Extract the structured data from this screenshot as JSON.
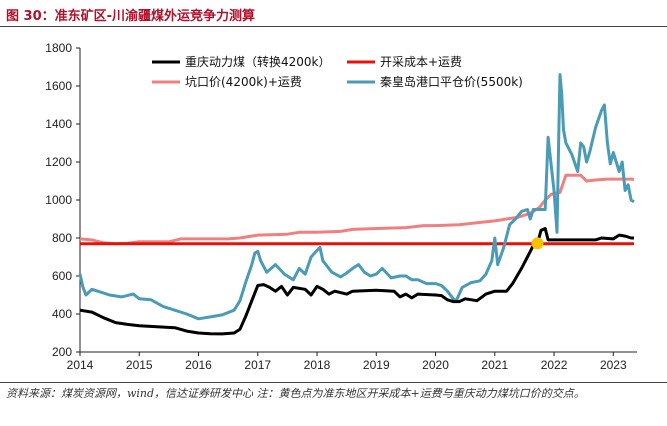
{
  "header": {
    "title": "图 30：准东矿区-川渝疆煤外运竞争力测算"
  },
  "footer": {
    "note": "资料来源：煤炭资源网，wind，信达证券研发中心   注：黄色点为准东地区开采成本+运费与重庆动力煤坑口价的交点。"
  },
  "colors": {
    "chongqing": "#000000",
    "cost": "#e3120b",
    "pit": "#f08080",
    "qhd": "#4a9bb5",
    "marker": "#ffc000"
  },
  "chart_data": {
    "type": "line",
    "xlim": [
      2014,
      2023.4
    ],
    "ylim": [
      200,
      1800
    ],
    "xticks": [
      "2014",
      "2015",
      "2016",
      "2017",
      "2018",
      "2019",
      "2020",
      "2021",
      "2022",
      "2023"
    ],
    "yticks": [
      "200",
      "400",
      "600",
      "800",
      "1000",
      "1200",
      "1400",
      "1600",
      "1800"
    ],
    "legend": {
      "position": "top"
    },
    "series": [
      {
        "name": "重庆动力煤（转换4200k）",
        "color": "#000000",
        "points": [
          [
            2014,
            420
          ],
          [
            2014.2,
            410
          ],
          [
            2014.4,
            380
          ],
          [
            2014.6,
            355
          ],
          [
            2014.8,
            345
          ],
          [
            2015,
            338
          ],
          [
            2015.3,
            333
          ],
          [
            2015.6,
            328
          ],
          [
            2015.8,
            310
          ],
          [
            2016,
            300
          ],
          [
            2016.2,
            296
          ],
          [
            2016.4,
            295
          ],
          [
            2016.6,
            300
          ],
          [
            2016.7,
            320
          ],
          [
            2016.8,
            390
          ],
          [
            2016.9,
            470
          ],
          [
            2017,
            550
          ],
          [
            2017.1,
            555
          ],
          [
            2017.2,
            540
          ],
          [
            2017.3,
            520
          ],
          [
            2017.4,
            545
          ],
          [
            2017.5,
            500
          ],
          [
            2017.6,
            540
          ],
          [
            2017.8,
            530
          ],
          [
            2017.9,
            500
          ],
          [
            2018,
            545
          ],
          [
            2018.1,
            530
          ],
          [
            2018.2,
            505
          ],
          [
            2018.3,
            520
          ],
          [
            2018.5,
            505
          ],
          [
            2018.6,
            520
          ],
          [
            2019,
            525
          ],
          [
            2019.3,
            520
          ],
          [
            2019.4,
            490
          ],
          [
            2019.5,
            505
          ],
          [
            2019.6,
            485
          ],
          [
            2019.7,
            505
          ],
          [
            2020,
            500
          ],
          [
            2020.1,
            497
          ],
          [
            2020.2,
            475
          ],
          [
            2020.3,
            465
          ],
          [
            2020.4,
            465
          ],
          [
            2020.5,
            480
          ],
          [
            2020.7,
            470
          ],
          [
            2020.85,
            505
          ],
          [
            2021,
            520
          ],
          [
            2021.2,
            520
          ],
          [
            2021.3,
            560
          ],
          [
            2021.45,
            640
          ],
          [
            2021.55,
            700
          ],
          [
            2021.65,
            760
          ],
          [
            2021.72,
            772
          ],
          [
            2021.78,
            840
          ],
          [
            2021.85,
            850
          ],
          [
            2021.9,
            790
          ],
          [
            2022,
            790
          ],
          [
            2022.3,
            790
          ],
          [
            2022.7,
            790
          ],
          [
            2022.8,
            800
          ],
          [
            2023,
            795
          ],
          [
            2023.1,
            815
          ],
          [
            2023.2,
            810
          ],
          [
            2023.3,
            800
          ],
          [
            2023.35,
            800
          ]
        ]
      },
      {
        "name": "开采成本+运费",
        "color": "#e3120b",
        "points": [
          [
            2014,
            770
          ],
          [
            2023.35,
            770
          ]
        ]
      },
      {
        "name": "坑口价(4200k)+运费",
        "color": "#f08080",
        "points": [
          [
            2014,
            795
          ],
          [
            2014.2,
            790
          ],
          [
            2014.4,
            775
          ],
          [
            2014.6,
            770
          ],
          [
            2014.8,
            772
          ],
          [
            2015,
            780
          ],
          [
            2015.5,
            780
          ],
          [
            2015.7,
            795
          ],
          [
            2016,
            795
          ],
          [
            2016.5,
            795
          ],
          [
            2016.7,
            800
          ],
          [
            2017,
            815
          ],
          [
            2017.5,
            820
          ],
          [
            2017.7,
            830
          ],
          [
            2018,
            830
          ],
          [
            2018.4,
            835
          ],
          [
            2018.6,
            845
          ],
          [
            2019,
            850
          ],
          [
            2019.5,
            855
          ],
          [
            2019.8,
            865
          ],
          [
            2020,
            865
          ],
          [
            2020.4,
            870
          ],
          [
            2020.7,
            880
          ],
          [
            2021,
            890
          ],
          [
            2021.2,
            900
          ],
          [
            2021.4,
            910
          ],
          [
            2021.6,
            930
          ],
          [
            2021.75,
            960
          ],
          [
            2021.85,
            1000
          ],
          [
            2021.95,
            1030
          ],
          [
            2022.1,
            1040
          ],
          [
            2022.2,
            1130
          ],
          [
            2022.45,
            1130
          ],
          [
            2022.55,
            1100
          ],
          [
            2022.7,
            1105
          ],
          [
            2022.9,
            1110
          ],
          [
            2023.1,
            1110
          ],
          [
            2023.3,
            1110
          ],
          [
            2023.35,
            1108
          ]
        ]
      },
      {
        "name": "秦皇岛港口平仓价(5500k)",
        "color": "#4a9bb5",
        "points": [
          [
            2014,
            610
          ],
          [
            2014.05,
            540
          ],
          [
            2014.1,
            500
          ],
          [
            2014.2,
            530
          ],
          [
            2014.3,
            520
          ],
          [
            2014.5,
            500
          ],
          [
            2014.7,
            490
          ],
          [
            2014.9,
            505
          ],
          [
            2015,
            480
          ],
          [
            2015.2,
            475
          ],
          [
            2015.4,
            440
          ],
          [
            2015.6,
            420
          ],
          [
            2015.8,
            400
          ],
          [
            2016,
            375
          ],
          [
            2016.2,
            385
          ],
          [
            2016.4,
            395
          ],
          [
            2016.6,
            420
          ],
          [
            2016.7,
            470
          ],
          [
            2016.8,
            570
          ],
          [
            2016.9,
            660
          ],
          [
            2016.95,
            720
          ],
          [
            2017,
            730
          ],
          [
            2017.05,
            680
          ],
          [
            2017.15,
            620
          ],
          [
            2017.3,
            660
          ],
          [
            2017.45,
            610
          ],
          [
            2017.6,
            580
          ],
          [
            2017.7,
            640
          ],
          [
            2017.8,
            610
          ],
          [
            2017.9,
            700
          ],
          [
            2018,
            735
          ],
          [
            2018.05,
            750
          ],
          [
            2018.1,
            680
          ],
          [
            2018.25,
            620
          ],
          [
            2018.4,
            595
          ],
          [
            2018.5,
            615
          ],
          [
            2018.6,
            640
          ],
          [
            2018.7,
            660
          ],
          [
            2018.8,
            620
          ],
          [
            2018.9,
            600
          ],
          [
            2019,
            610
          ],
          [
            2019.1,
            640
          ],
          [
            2019.25,
            590
          ],
          [
            2019.4,
            600
          ],
          [
            2019.5,
            600
          ],
          [
            2019.6,
            580
          ],
          [
            2019.7,
            580
          ],
          [
            2019.85,
            560
          ],
          [
            2020,
            560
          ],
          [
            2020.1,
            550
          ],
          [
            2020.2,
            520
          ],
          [
            2020.3,
            480
          ],
          [
            2020.35,
            470
          ],
          [
            2020.45,
            540
          ],
          [
            2020.6,
            565
          ],
          [
            2020.75,
            575
          ],
          [
            2020.85,
            610
          ],
          [
            2020.95,
            680
          ],
          [
            2021,
            800
          ],
          [
            2021.05,
            660
          ],
          [
            2021.15,
            750
          ],
          [
            2021.25,
            870
          ],
          [
            2021.35,
            900
          ],
          [
            2021.45,
            940
          ],
          [
            2021.55,
            950
          ],
          [
            2021.6,
            900
          ],
          [
            2021.65,
            950
          ],
          [
            2021.7,
            950
          ],
          [
            2021.75,
            950
          ],
          [
            2021.85,
            950
          ],
          [
            2021.9,
            1330
          ],
          [
            2022,
            1050
          ],
          [
            2022.05,
            830
          ],
          [
            2022.08,
            1350
          ],
          [
            2022.1,
            1660
          ],
          [
            2022.13,
            1560
          ],
          [
            2022.16,
            1370
          ],
          [
            2022.2,
            1300
          ],
          [
            2022.3,
            1240
          ],
          [
            2022.4,
            1150
          ],
          [
            2022.45,
            1300
          ],
          [
            2022.5,
            1280
          ],
          [
            2022.55,
            1200
          ],
          [
            2022.6,
            1250
          ],
          [
            2022.7,
            1380
          ],
          [
            2022.8,
            1470
          ],
          [
            2022.85,
            1500
          ],
          [
            2022.9,
            1300
          ],
          [
            2022.95,
            1190
          ],
          [
            2023,
            1250
          ],
          [
            2023.1,
            1150
          ],
          [
            2023.15,
            1200
          ],
          [
            2023.2,
            1050
          ],
          [
            2023.25,
            1080
          ],
          [
            2023.3,
            1000
          ],
          [
            2023.35,
            990
          ]
        ]
      }
    ],
    "annotation": {
      "label": "交点",
      "x": 2021.72,
      "y": 772
    }
  }
}
